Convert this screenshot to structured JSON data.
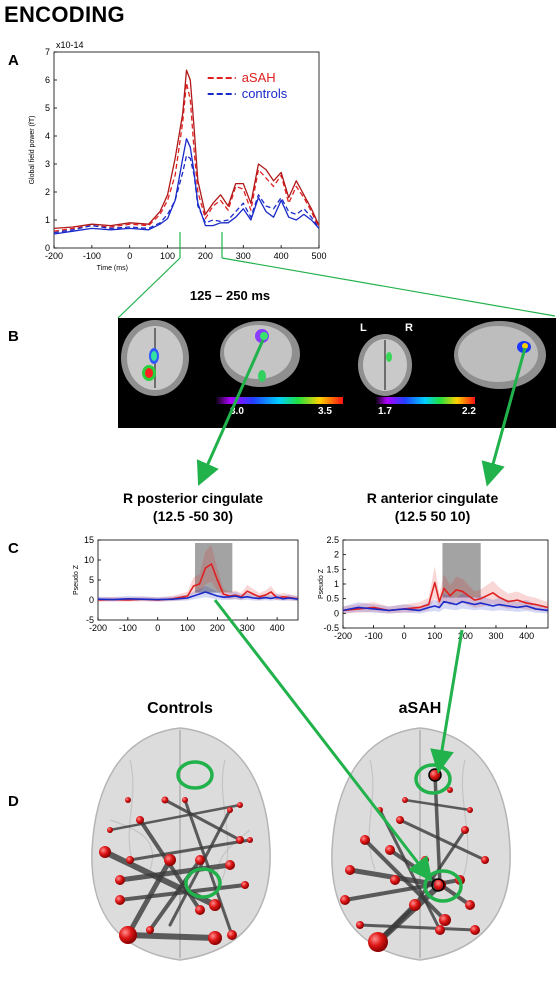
{
  "title": "ENCODING",
  "panels": {
    "a": "A",
    "b": "B",
    "c": "C",
    "d": "D"
  },
  "window_label": "125 – 250 ms",
  "panel_b": {
    "orientation": {
      "left": "L",
      "right": "R"
    },
    "scale1": {
      "min": "3.0",
      "max": "3.5"
    },
    "scale2": {
      "min": "1.7",
      "max": "2.2"
    }
  },
  "roi": [
    {
      "name": "R posterior cingulate",
      "coords": "(12.5 -50 30)"
    },
    {
      "name": "R anterior cingulate",
      "coords": "(12.5 50 10)"
    }
  ],
  "brains": {
    "left": "Controls",
    "right": "aSAH"
  },
  "colors": {
    "asah": "#e02020",
    "controls": "#1a2ac8",
    "arrow": "#22b24c",
    "shade": "#8c8c8c"
  },
  "chart_data": [
    {
      "type": "line",
      "id": "gfp",
      "exponent_label": "x10-14",
      "ylabel": "Global field power (fT)",
      "xlabel": "Time (ms)",
      "xlim": [
        -200,
        500
      ],
      "ylim": [
        0,
        7
      ],
      "xticks": [
        -200,
        -100,
        0,
        100,
        200,
        300,
        400,
        500
      ],
      "yticks": [
        0,
        1,
        2,
        3,
        4,
        5,
        6,
        7
      ],
      "series": [
        {
          "name": "aSAH",
          "style": "dashed",
          "color": "#e02020",
          "x": [
            -200,
            -150,
            -100,
            -50,
            0,
            50,
            80,
            100,
            120,
            140,
            150,
            160,
            170,
            180,
            200,
            220,
            240,
            260,
            280,
            300,
            320,
            340,
            360,
            380,
            400,
            420,
            440,
            460,
            480,
            500
          ],
          "y": [
            0.6,
            0.7,
            0.8,
            0.75,
            0.85,
            0.8,
            1.2,
            1.7,
            2.6,
            4.5,
            5.9,
            5.3,
            3.5,
            2.0,
            1.05,
            1.5,
            1.7,
            1.35,
            2.2,
            2.1,
            1.35,
            2.8,
            2.5,
            2.2,
            2.6,
            1.6,
            2.2,
            1.8,
            1.3,
            0.7
          ]
        },
        {
          "name": "controls",
          "style": "dashed",
          "color": "#1a2ac8",
          "x": [
            -200,
            -150,
            -100,
            -50,
            0,
            50,
            80,
            100,
            120,
            140,
            150,
            160,
            170,
            180,
            200,
            220,
            240,
            260,
            280,
            300,
            320,
            340,
            360,
            380,
            400,
            420,
            440,
            460,
            480,
            500
          ],
          "y": [
            0.55,
            0.65,
            0.8,
            0.7,
            0.75,
            0.7,
            0.9,
            1.2,
            1.7,
            2.7,
            3.3,
            3.2,
            2.6,
            1.5,
            0.9,
            1.0,
            0.95,
            1.0,
            1.3,
            1.6,
            1.1,
            1.9,
            1.5,
            1.4,
            1.8,
            1.3,
            1.2,
            1.4,
            1.1,
            0.7
          ]
        },
        {
          "name": "aSAH",
          "style": "solid",
          "color": "#b01818",
          "x": [
            -200,
            -150,
            -100,
            -50,
            0,
            50,
            80,
            100,
            120,
            140,
            150,
            160,
            170,
            180,
            200,
            220,
            240,
            260,
            280,
            300,
            320,
            340,
            360,
            380,
            400,
            420,
            440,
            460,
            480,
            500
          ],
          "y": [
            0.7,
            0.75,
            0.85,
            0.8,
            0.9,
            0.85,
            1.3,
            1.9,
            3.2,
            4.8,
            6.35,
            6.0,
            4.3,
            2.4,
            1.2,
            1.6,
            1.9,
            1.5,
            2.3,
            2.3,
            1.6,
            3.0,
            2.8,
            2.4,
            2.7,
            1.8,
            2.4,
            1.9,
            1.4,
            0.8
          ]
        },
        {
          "name": "controls",
          "style": "solid",
          "color": "#1a2ac8",
          "x": [
            -200,
            -150,
            -100,
            -50,
            0,
            50,
            80,
            100,
            120,
            140,
            150,
            160,
            170,
            180,
            200,
            220,
            240,
            260,
            280,
            300,
            320,
            340,
            360,
            380,
            400,
            420,
            440,
            460,
            480,
            500
          ],
          "y": [
            0.5,
            0.6,
            0.7,
            0.65,
            0.7,
            0.65,
            0.85,
            1.05,
            1.7,
            3.2,
            3.9,
            3.6,
            2.7,
            1.6,
            0.8,
            0.8,
            0.9,
            0.9,
            1.1,
            1.4,
            1.0,
            1.8,
            1.3,
            1.1,
            1.7,
            1.1,
            1.0,
            1.2,
            1.0,
            0.7
          ]
        }
      ],
      "legend": [
        {
          "label": "aSAH",
          "color": "#e02020"
        },
        {
          "label": "controls",
          "color": "#1a2ac8"
        }
      ]
    },
    {
      "type": "line",
      "id": "pcc",
      "ylabel": "Pseudo Z",
      "xlim": [
        -200,
        470
      ],
      "ylim": [
        -5,
        15
      ],
      "xticks": [
        -200,
        -100,
        0,
        100,
        200,
        300,
        400
      ],
      "yticks": [
        -5,
        0,
        5,
        10,
        15
      ],
      "shaded_window": [
        125,
        250
      ],
      "series": [
        {
          "name": "aSAH",
          "color": "#e02020",
          "x": [
            -200,
            -150,
            -100,
            -50,
            0,
            50,
            100,
            120,
            140,
            160,
            180,
            200,
            220,
            240,
            260,
            280,
            300,
            320,
            340,
            360,
            380,
            400,
            420,
            440,
            470
          ],
          "y": [
            0,
            0.1,
            0,
            0.2,
            0,
            0.3,
            1,
            3.5,
            4,
            8,
            9,
            5,
            1.5,
            1,
            1.2,
            0.8,
            2.2,
            1.5,
            0.8,
            1.2,
            2.0,
            0.5,
            0.8,
            0.6,
            0.3
          ]
        },
        {
          "name": "controls",
          "color": "#1a2ac8",
          "x": [
            -200,
            -150,
            -100,
            -50,
            0,
            50,
            100,
            120,
            140,
            160,
            180,
            200,
            220,
            240,
            260,
            280,
            300,
            320,
            340,
            360,
            380,
            400,
            420,
            440,
            470
          ],
          "y": [
            0.2,
            0.1,
            0.3,
            0.2,
            0.1,
            0.2,
            0.5,
            1.0,
            1.5,
            2.0,
            1.5,
            1.0,
            0.7,
            0.8,
            1.0,
            0.6,
            0.8,
            0.5,
            0.4,
            0.6,
            0.4,
            0.7,
            0.3,
            0.5,
            0.2
          ]
        }
      ]
    },
    {
      "type": "line",
      "id": "acc",
      "ylabel": "Pseudo Z",
      "xlim": [
        -200,
        470
      ],
      "ylim": [
        -0.5,
        2.5
      ],
      "xticks": [
        -200,
        -100,
        0,
        100,
        200,
        300,
        400
      ],
      "yticks": [
        -0.5,
        0,
        0.5,
        1,
        1.5,
        2,
        2.5
      ],
      "shaded_window": [
        125,
        250
      ],
      "series": [
        {
          "name": "aSAH",
          "color": "#e02020",
          "x": [
            -200,
            -150,
            -100,
            -50,
            0,
            50,
            80,
            100,
            115,
            130,
            150,
            170,
            190,
            210,
            230,
            250,
            270,
            290,
            310,
            340,
            370,
            400,
            430,
            470
          ],
          "y": [
            0.1,
            0.15,
            0.2,
            0.1,
            0.15,
            0.2,
            0.3,
            1.05,
            0.4,
            0.85,
            0.6,
            0.8,
            0.75,
            0.6,
            0.45,
            0.5,
            0.6,
            0.7,
            0.55,
            0.4,
            0.45,
            0.35,
            0.3,
            0.2
          ]
        },
        {
          "name": "controls",
          "color": "#1a2ac8",
          "x": [
            -200,
            -150,
            -100,
            -50,
            0,
            50,
            80,
            100,
            115,
            130,
            150,
            170,
            190,
            210,
            230,
            250,
            270,
            290,
            310,
            340,
            370,
            400,
            430,
            470
          ],
          "y": [
            0.1,
            0.2,
            0.15,
            0.1,
            0.15,
            0.1,
            0.2,
            0.25,
            0.2,
            0.4,
            0.35,
            0.3,
            0.4,
            0.35,
            0.3,
            0.35,
            0.3,
            0.25,
            0.3,
            0.25,
            0.2,
            0.25,
            0.15,
            0.1
          ]
        }
      ]
    }
  ]
}
